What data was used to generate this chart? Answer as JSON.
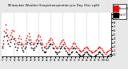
{
  "title": "Milwaukee Weather Evapotranspiration per Day (Ozs sq/ft)",
  "background_color": "#e8e8e8",
  "plot_bg_color": "#ffffff",
  "grid_color": "#aaaaaa",
  "ylim": [
    -0.5,
    10.5
  ],
  "yticks": [
    0,
    1,
    2,
    3,
    4,
    5,
    6,
    7,
    8,
    9,
    10
  ],
  "ytick_labels": [
    "0",
    "1",
    "2",
    "3",
    "4",
    "5",
    "6",
    "7",
    "8",
    "9",
    "10"
  ],
  "legend_label_red": "Actual ET",
  "legend_label_black": "Ref ET",
  "red_data": [
    2.1,
    3.5,
    5.8,
    7.5,
    6.2,
    5.0,
    4.3,
    3.8,
    4.9,
    5.5,
    6.1,
    5.8,
    4.2,
    3.5,
    2.8,
    3.2,
    4.1,
    4.8,
    3.9,
    3.0,
    2.5,
    2.2,
    2.8,
    3.5,
    4.2,
    4.8,
    5.2,
    4.5,
    3.8,
    3.2,
    2.8,
    2.5,
    3.0,
    3.5,
    4.0,
    4.5,
    5.0,
    4.5,
    3.8,
    3.0,
    2.5,
    2.0,
    1.8,
    2.2,
    2.8,
    3.2,
    3.5,
    3.8,
    4.2,
    3.8,
    3.2,
    2.8,
    2.2,
    1.8,
    1.5,
    1.8,
    2.2,
    2.8,
    3.2,
    3.5,
    3.8,
    3.2,
    2.8,
    2.2,
    1.8,
    1.5,
    1.2,
    1.5,
    1.8,
    2.2,
    2.8,
    3.0,
    2.8,
    2.2,
    1.8,
    1.5,
    1.2,
    1.0,
    0.8,
    1.0,
    1.2,
    1.5,
    1.8,
    2.0,
    1.8,
    1.5,
    1.2,
    1.0,
    0.8,
    0.5,
    0.5,
    0.8,
    1.0,
    1.2,
    1.5,
    1.8,
    2.0,
    1.8,
    1.5,
    1.2,
    0.8,
    0.5,
    0.2,
    0.5,
    0.8,
    1.0,
    1.2,
    1.5
  ],
  "black_data": [
    1.8,
    2.8,
    4.5,
    5.5,
    4.8,
    3.5,
    2.8,
    2.2,
    3.2,
    4.0,
    4.5,
    4.0,
    2.8,
    2.0,
    1.2,
    1.8,
    2.5,
    3.2,
    2.5,
    1.8,
    1.2,
    0.8,
    1.5,
    2.0,
    2.8,
    3.2,
    3.8,
    3.0,
    2.5,
    1.8,
    1.5,
    1.2,
    1.8,
    2.2,
    2.8,
    3.0,
    3.5,
    3.0,
    2.5,
    1.8,
    1.2,
    0.8,
    0.5,
    0.8,
    1.5,
    1.8,
    2.2,
    2.5,
    2.8,
    2.5,
    1.8,
    1.5,
    0.8,
    0.5,
    0.2,
    0.5,
    0.8,
    1.5,
    1.8,
    2.2,
    2.5,
    1.8,
    1.5,
    1.0,
    0.5,
    0.2,
    0.0,
    0.2,
    0.5,
    0.8,
    1.5,
    1.8,
    1.5,
    0.8,
    0.5,
    0.2,
    0.0,
    -0.2,
    -0.5,
    -0.2,
    0.0,
    0.2,
    0.5,
    0.8,
    0.5,
    0.2,
    0.0,
    -0.2,
    -0.5,
    -0.8,
    -0.8,
    -0.5,
    -0.2,
    0.0,
    0.2,
    0.5,
    0.8,
    0.5,
    0.2,
    0.0,
    -0.5,
    -0.8,
    -1.0,
    -0.8,
    -0.5,
    -0.2,
    0.0,
    0.2
  ],
  "vline_positions": [
    11.5,
    23.5,
    35.5,
    47.5,
    59.5,
    71.5,
    83.5,
    95.5
  ],
  "num_points": 108,
  "dot_size": 1.5,
  "figsize": [
    1.6,
    0.87
  ],
  "dpi": 100
}
